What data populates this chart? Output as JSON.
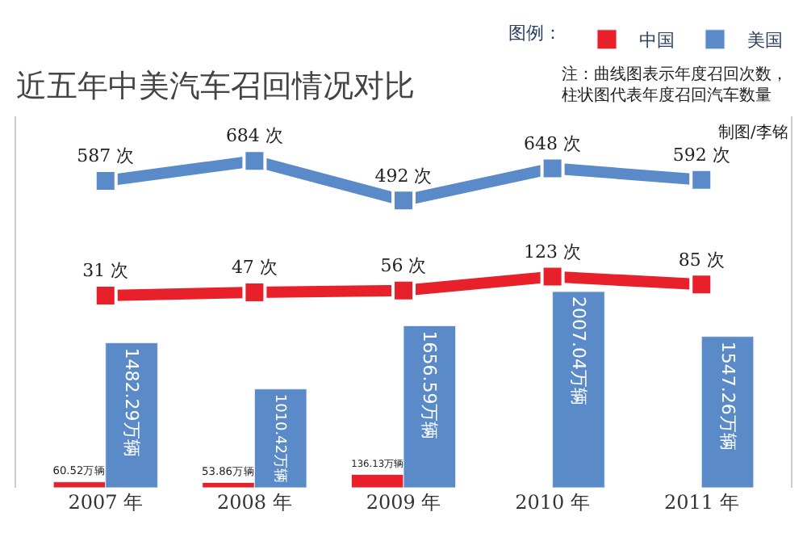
{
  "chart_data": {
    "type": "bar",
    "title": "近五年中美汽车召回情况对比",
    "categories": [
      "2007 年",
      "2008 年",
      "2009 年",
      "2010 年",
      "2011 年"
    ],
    "ylim": [
      0,
      3800
    ],
    "y2lim": [
      -900,
      900
    ],
    "legend_title": "图例：",
    "legend": "top right",
    "tick_labels": "x",
    "marker": "square",
    "series": [
      {
        "name": "中国",
        "color": "#e8202a",
        "values": [
          60.52,
          53.86,
          136.13,
          null,
          null
        ],
        "value_labels": [
          "60.52万辆",
          "53.86万辆",
          "136.13万辆",
          null,
          null
        ]
      },
      {
        "name": "美国",
        "color": "#5b8ac8",
        "values": [
          1482.29,
          1010.42,
          1656.59,
          2007.04,
          1547.26
        ],
        "value_labels": [
          "1482.29万辆",
          "1010.42万辆",
          "1656.59万辆",
          "2007.04万辆",
          "1547.26万辆"
        ]
      },
      {
        "type": "line",
        "axis": "y2",
        "color": "#e8202a",
        "values": [
          31,
          47,
          56,
          123,
          85
        ],
        "value_labels": [
          "31 次",
          "47 次",
          "56 次",
          "123 次",
          "85 次"
        ]
      },
      {
        "type": "line",
        "axis": "y2",
        "color": "#5b8ac8",
        "values": [
          587,
          684,
          492,
          648,
          592
        ],
        "value_labels": [
          "587 次",
          "684 次",
          "492 次",
          "648 次",
          "592 次"
        ]
      }
    ],
    "annotations": [
      "注：曲线图表示年度召回次数，柱状图代表年度召回汽车数量",
      "制图/李铭"
    ]
  }
}
